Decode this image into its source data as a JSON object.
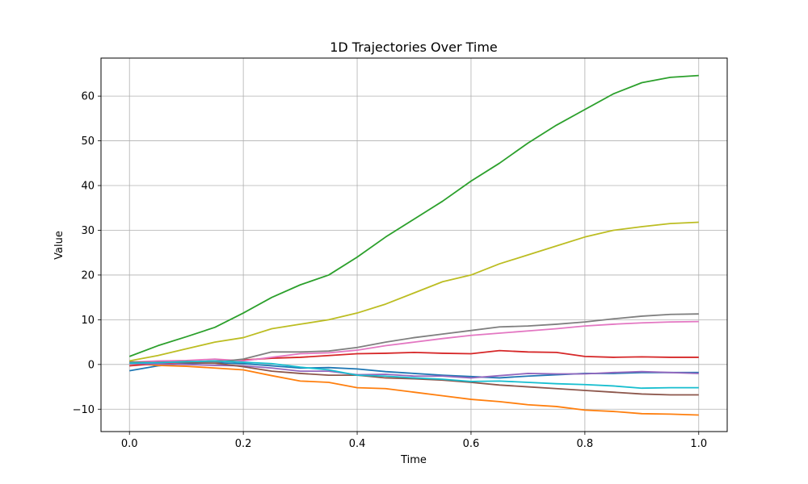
{
  "chart_data": {
    "type": "line",
    "title": "1D Trajectories Over Time",
    "xlabel": "Time",
    "ylabel": "Value",
    "xlim": [
      -0.05,
      1.05
    ],
    "ylim": [
      -15,
      68.5
    ],
    "xticks": [
      0.0,
      0.2,
      0.4,
      0.6,
      0.8,
      1.0
    ],
    "xtick_labels": [
      "0.0",
      "0.2",
      "0.4",
      "0.6",
      "0.8",
      "1.0"
    ],
    "yticks": [
      -10,
      0,
      10,
      20,
      30,
      40,
      50,
      60
    ],
    "ytick_labels": [
      "−10",
      "0",
      "10",
      "20",
      "30",
      "40",
      "50",
      "60"
    ],
    "grid": true,
    "legend": "none",
    "x": [
      0.0,
      0.05,
      0.1,
      0.15,
      0.2,
      0.25,
      0.3,
      0.35,
      0.4,
      0.45,
      0.5,
      0.55,
      0.6,
      0.65,
      0.7,
      0.75,
      0.8,
      0.85,
      0.9,
      0.95,
      1.0
    ],
    "series": [
      {
        "color": "#1f77b4",
        "values": [
          -1.4,
          -0.3,
          0.2,
          0.4,
          0.2,
          -0.3,
          -0.8,
          -0.7,
          -1.0,
          -1.6,
          -2.0,
          -2.4,
          -2.7,
          -3.0,
          -2.6,
          -2.3,
          -2.0,
          -2.0,
          -1.8,
          -1.8,
          -1.8
        ]
      },
      {
        "color": "#ff7f0e",
        "values": [
          0.3,
          -0.2,
          -0.4,
          -0.8,
          -1.2,
          -2.5,
          -3.7,
          -4.0,
          -5.2,
          -5.4,
          -6.2,
          -7.0,
          -7.8,
          -8.3,
          -9.0,
          -9.4,
          -10.2,
          -10.5,
          -11.0,
          -11.1,
          -11.3
        ]
      },
      {
        "color": "#2ca02c",
        "values": [
          1.8,
          4.2,
          6.2,
          8.3,
          11.5,
          15.0,
          17.8,
          20.0,
          24.0,
          28.5,
          32.5,
          36.5,
          41.0,
          45.0,
          49.5,
          53.5,
          57.0,
          60.5,
          63.0,
          64.2,
          64.6
        ]
      },
      {
        "color": "#d62728",
        "values": [
          -0.3,
          0.2,
          0.5,
          0.8,
          1.0,
          1.4,
          1.6,
          2.0,
          2.4,
          2.5,
          2.7,
          2.5,
          2.4,
          3.1,
          2.8,
          2.7,
          1.8,
          1.6,
          1.7,
          1.6,
          1.6
        ]
      },
      {
        "color": "#9467bd",
        "values": [
          0.2,
          0.1,
          0.0,
          -0.2,
          -0.3,
          -0.8,
          -1.5,
          -1.5,
          -2.3,
          -2.2,
          -2.6,
          -2.6,
          -3.0,
          -2.5,
          -2.0,
          -2.1,
          -2.1,
          -1.8,
          -1.6,
          -1.8,
          -2.0
        ]
      },
      {
        "color": "#8c564b",
        "values": [
          0.5,
          0.6,
          0.4,
          0.3,
          -0.5,
          -1.5,
          -2.0,
          -2.4,
          -2.4,
          -3.0,
          -3.2,
          -3.5,
          -4.0,
          -4.6,
          -5.0,
          -5.4,
          -5.8,
          -6.2,
          -6.6,
          -6.8,
          -6.8
        ]
      },
      {
        "color": "#e377c2",
        "values": [
          0.5,
          0.8,
          0.9,
          1.2,
          0.8,
          1.6,
          2.4,
          2.6,
          3.2,
          4.2,
          5.0,
          5.8,
          6.5,
          7.0,
          7.5,
          8.0,
          8.6,
          9.0,
          9.3,
          9.5,
          9.6
        ]
      },
      {
        "color": "#7f7f7f",
        "values": [
          0.6,
          0.4,
          0.7,
          0.5,
          1.2,
          2.8,
          2.8,
          3.0,
          3.8,
          5.0,
          6.0,
          6.8,
          7.6,
          8.4,
          8.6,
          9.0,
          9.5,
          10.2,
          10.8,
          11.2,
          11.3
        ]
      },
      {
        "color": "#bcbd22",
        "values": [
          0.8,
          2.0,
          3.5,
          5.0,
          6.0,
          8.0,
          9.0,
          10.0,
          11.5,
          13.5,
          16.0,
          18.5,
          20.0,
          22.5,
          24.5,
          26.5,
          28.5,
          30.0,
          30.8,
          31.5,
          31.8
        ]
      },
      {
        "color": "#17becf",
        "values": [
          0.3,
          0.4,
          0.6,
          0.8,
          0.5,
          0.2,
          -0.6,
          -1.2,
          -2.4,
          -2.6,
          -3.0,
          -3.3,
          -3.8,
          -3.7,
          -4.0,
          -4.3,
          -4.5,
          -4.8,
          -5.3,
          -5.2,
          -5.2
        ]
      }
    ]
  }
}
